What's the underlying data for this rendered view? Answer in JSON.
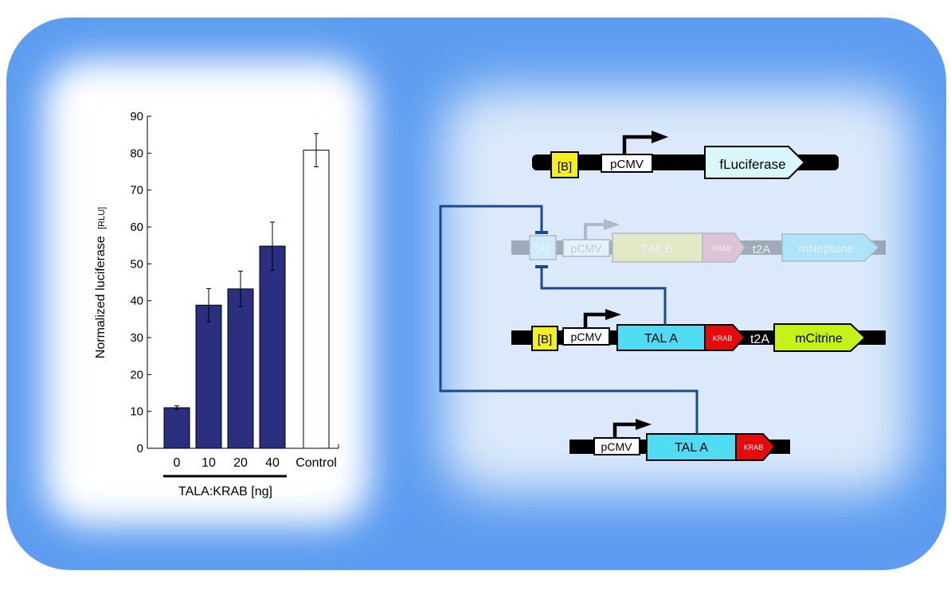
{
  "chart_data": {
    "type": "bar",
    "categories": [
      "0",
      "10",
      "20",
      "40",
      "Control"
    ],
    "values": [
      11,
      38.8,
      43.2,
      54.8,
      80.8
    ],
    "errors": [
      0.5,
      4.5,
      4.8,
      6.5,
      4.5
    ],
    "ylabel_main": "Normalized luciferase",
    "ylabel_unit": "[RLU]",
    "group_label": "TALA:KRAB [ng]",
    "ylim": [
      0,
      90
    ],
    "yticks": [
      "0",
      "10",
      "20",
      "30",
      "40",
      "50",
      "60",
      "70",
      "80",
      "90"
    ],
    "colors": {
      "treatment": "#2b2f7f",
      "control": "#ffffff"
    }
  },
  "diagram": {
    "reporter": {
      "binding_site": "[B]",
      "promoter": "pCMV",
      "gene": "fLuciferase"
    },
    "talb_construct": {
      "binding_site": "[A]",
      "promoter": "pCMV",
      "tal": "TAL B",
      "krab": "KRAB",
      "linker": "t2A",
      "reporter": "mNeptune"
    },
    "tala_construct": {
      "binding_site": "[B]",
      "promoter": "pCMV",
      "tal": "TAL A",
      "krab": "KRAB",
      "linker": "t2A",
      "reporter": "mCitrine"
    },
    "input_construct": {
      "promoter": "pCMV",
      "tal": "TAL A",
      "krab": "KRAB"
    },
    "colors": {
      "binding_site": "#f4f020",
      "tal": "#4fdcf2",
      "krab": "#e30b0b",
      "mcitrine": "#c6f219",
      "fluciferase": "#d9f6fb",
      "repression_line": "#1a4a8e",
      "panel_blue": "#5d9cf0"
    }
  }
}
